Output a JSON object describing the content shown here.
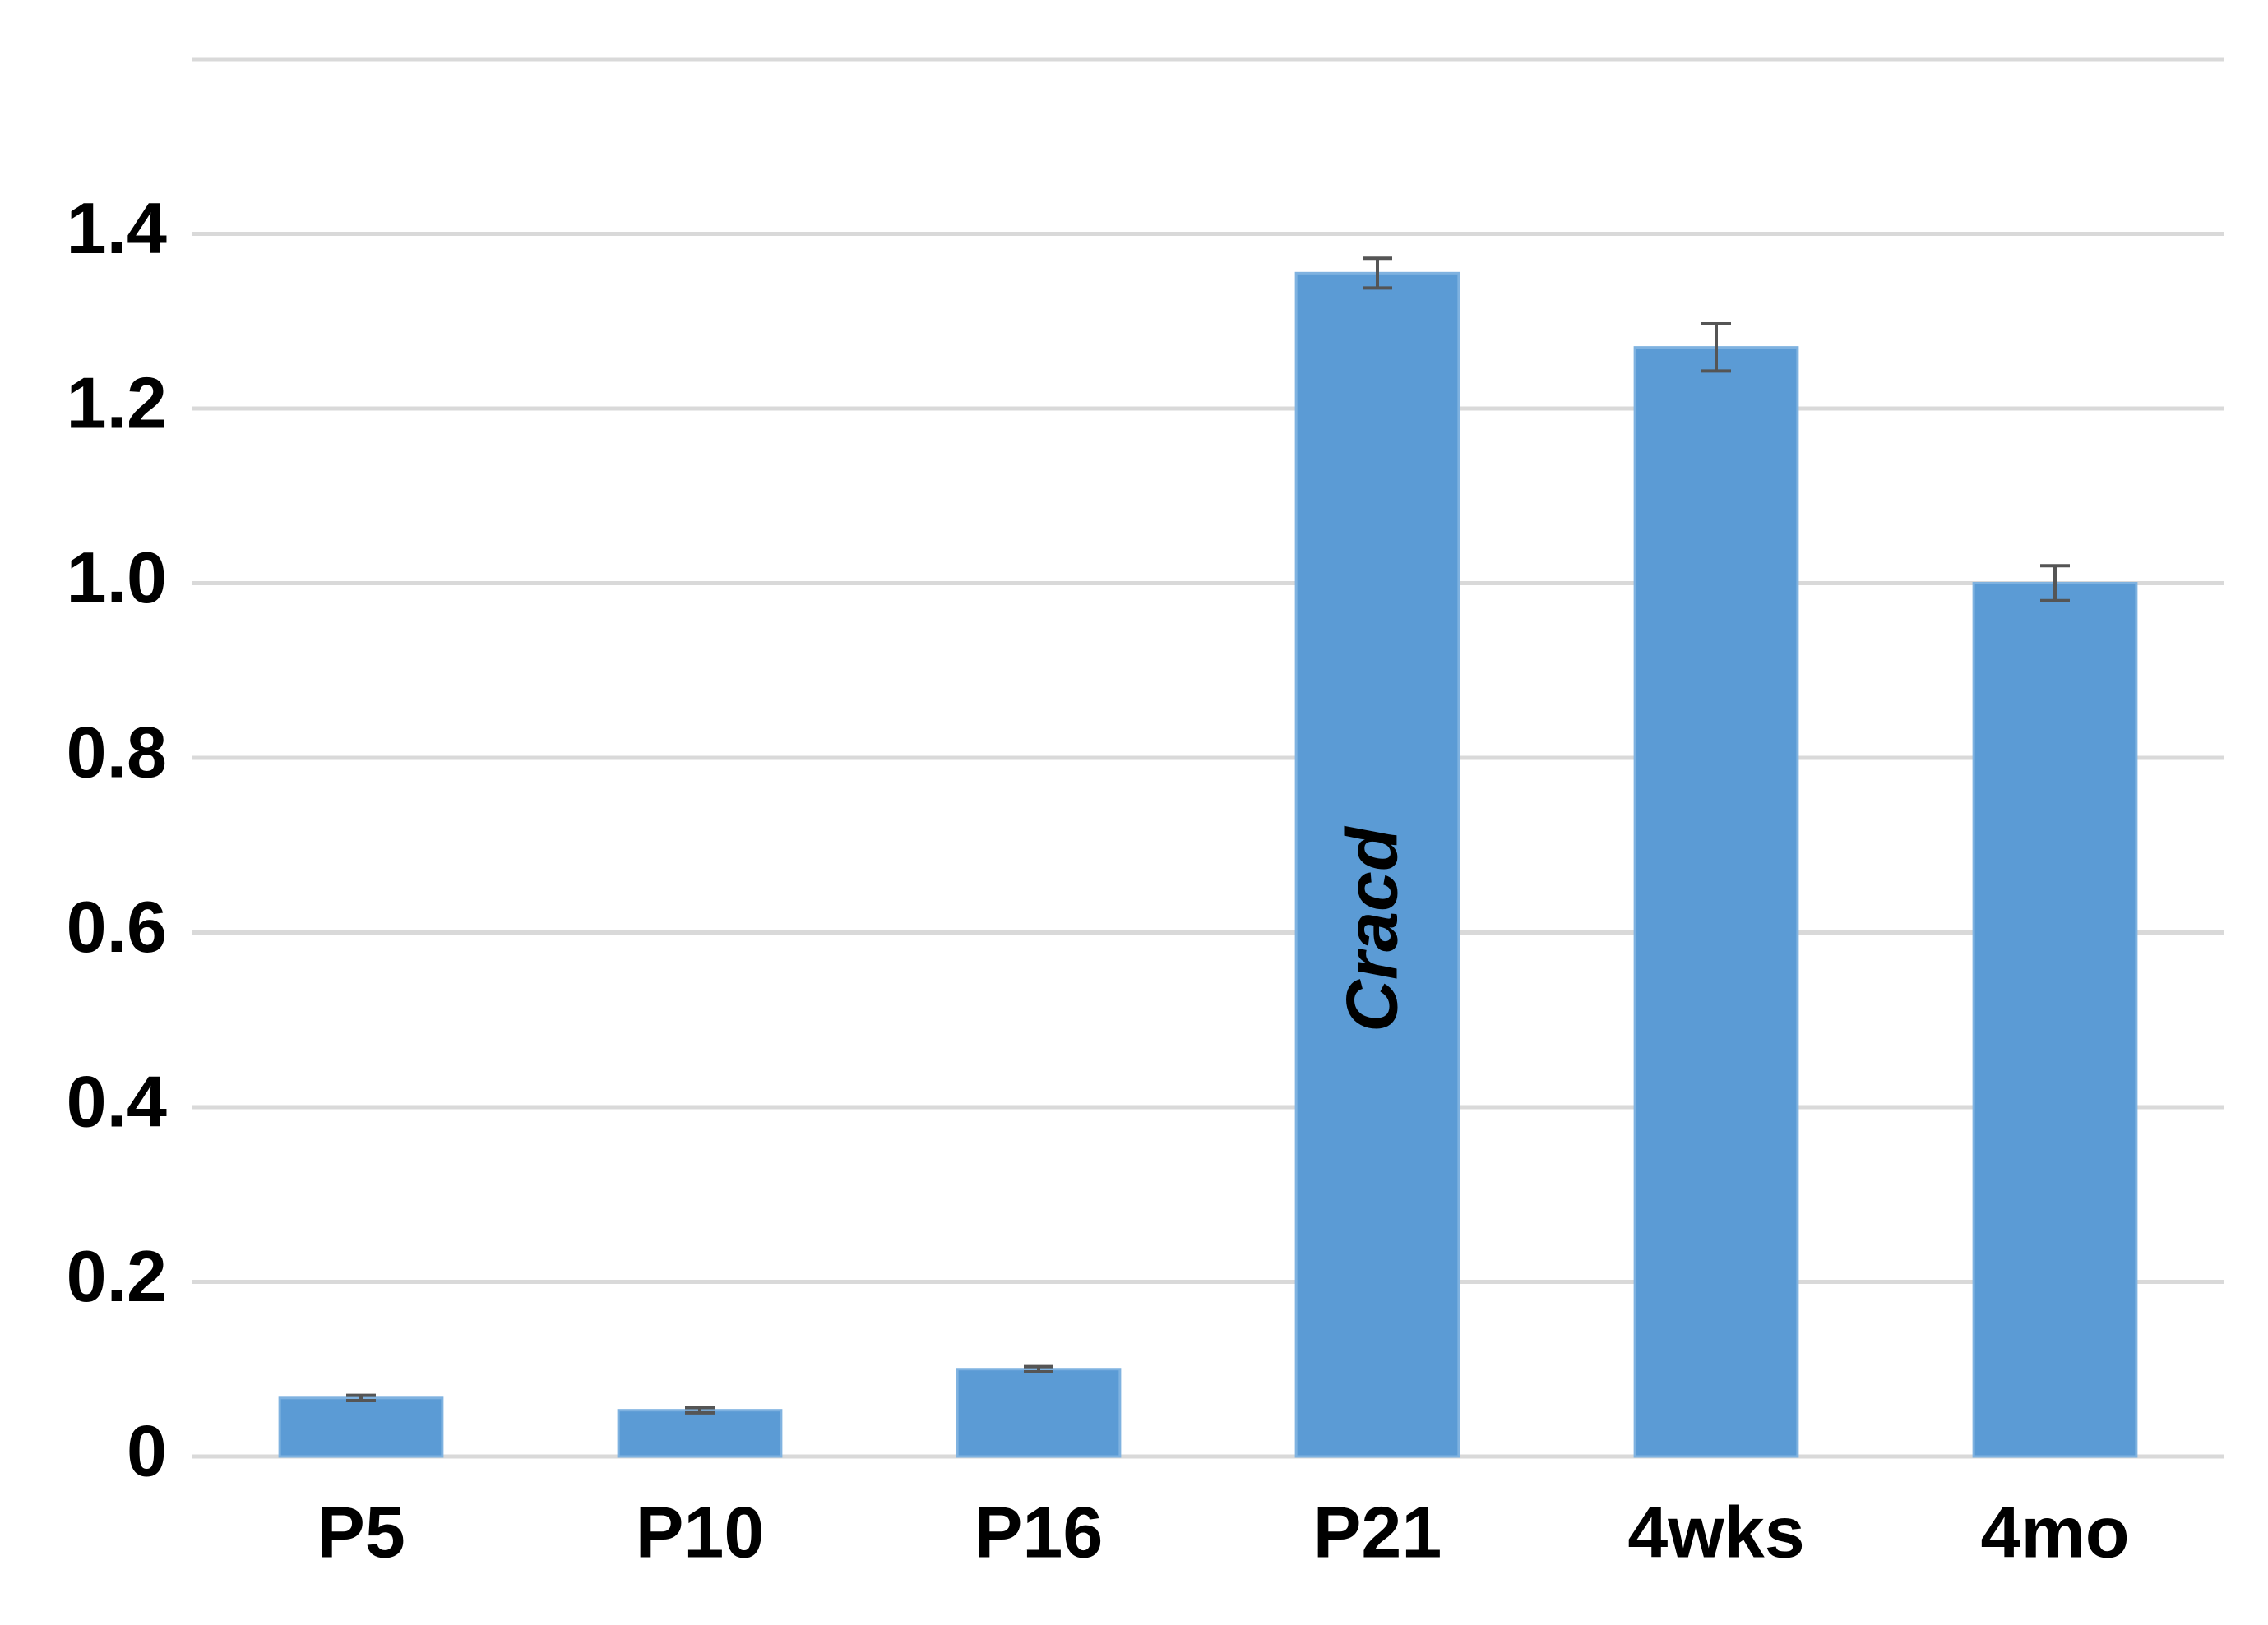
{
  "chart_data": {
    "type": "bar",
    "categories": [
      "P5",
      "P10",
      "P16",
      "P21",
      "4wks",
      "4mo"
    ],
    "values": [
      0.067,
      0.053,
      0.1,
      1.355,
      1.27,
      1.0
    ],
    "errors": [
      0.003,
      0.003,
      0.003,
      0.017,
      0.027,
      0.02
    ],
    "color": "#5b9bd5",
    "annotation": "Cracd",
    "ylim": [
      0,
      1.6
    ],
    "yticks": [
      0,
      0.2,
      0.4,
      0.6,
      0.8,
      {
        "value": 1,
        "label": "1.0"
      },
      1.2,
      1.4
    ],
    "grid": true
  }
}
